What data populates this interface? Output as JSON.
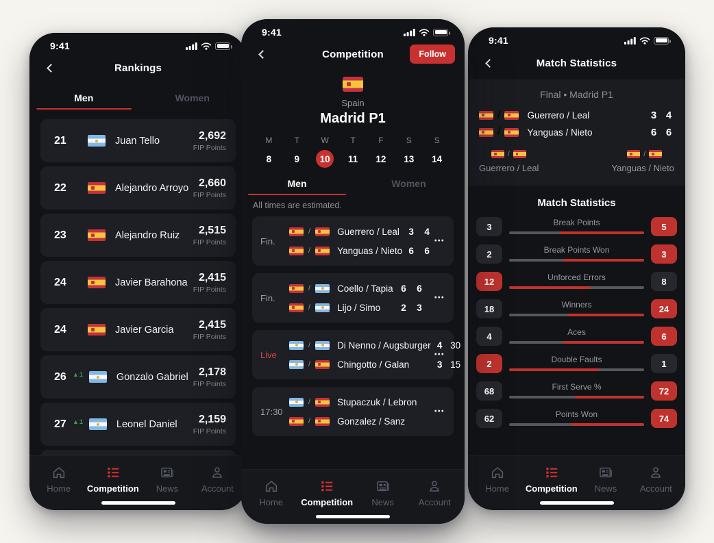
{
  "status": {
    "time": "9:41"
  },
  "colors": {
    "accent": "#c93131",
    "live_red": "#e04540",
    "chip_red": "#c0322d",
    "green_up": "#34a04c",
    "card_bg": "#1d1f24",
    "screen_bg": "#121316",
    "nav_bg": "#17181c",
    "bar_gray": "#55575c"
  },
  "icons": {
    "more": "•••",
    "up_arrow": "▲"
  },
  "nav": {
    "items": [
      {
        "label": "Home",
        "icon": "home",
        "active": false
      },
      {
        "label": "Competition",
        "icon": "competition",
        "active": true
      },
      {
        "label": "News",
        "icon": "news",
        "active": false
      },
      {
        "label": "Account",
        "icon": "account",
        "active": false
      }
    ]
  },
  "rankings": {
    "title": "Rankings",
    "tabs": [
      {
        "label": "Men",
        "active": true
      },
      {
        "label": "Women",
        "active": false
      }
    ],
    "points_label": "FIP Points",
    "players": [
      {
        "rank": "21",
        "delta": "",
        "flags": [
          "ar"
        ],
        "name": "Juan Tello",
        "points": "2,692"
      },
      {
        "rank": "22",
        "delta": "",
        "flags": [
          "es"
        ],
        "name": "Alejandro Arroyo",
        "points": "2,660"
      },
      {
        "rank": "23",
        "delta": "",
        "flags": [
          "es"
        ],
        "name": "Alejandro Ruiz",
        "points": "2,515"
      },
      {
        "rank": "24",
        "delta": "",
        "flags": [
          "es"
        ],
        "name": "Javier Barahona",
        "points": "2,415"
      },
      {
        "rank": "24",
        "delta": "",
        "flags": [
          "es"
        ],
        "name": "Javier Garcia",
        "points": "2,415"
      },
      {
        "rank": "26",
        "delta": "1",
        "flags": [
          "ar"
        ],
        "name": "Gonzalo Gabriel",
        "points": "2,178"
      },
      {
        "rank": "27",
        "delta": "1",
        "flags": [
          "ar"
        ],
        "name": "Leonel Daniel",
        "points": "2,159"
      }
    ]
  },
  "competition": {
    "title": "Competition",
    "follow_label": "Follow",
    "country": "Spain",
    "event": "Madrid P1",
    "week": [
      {
        "day": "M",
        "date": "8",
        "selected": false
      },
      {
        "day": "T",
        "date": "9",
        "selected": false
      },
      {
        "day": "W",
        "date": "10",
        "selected": true
      },
      {
        "day": "T",
        "date": "11",
        "selected": false
      },
      {
        "day": "F",
        "date": "12",
        "selected": false
      },
      {
        "day": "S",
        "date": "13",
        "selected": false
      },
      {
        "day": "S",
        "date": "14",
        "selected": false
      }
    ],
    "tabs": [
      {
        "label": "Men",
        "active": true
      },
      {
        "label": "Women",
        "active": false
      }
    ],
    "note": "All times are estimated.",
    "matches": [
      {
        "status": "Fin.",
        "live": false,
        "teams": [
          {
            "flags": [
              "es",
              "es"
            ],
            "name": "Guerrero / Leal",
            "s1": "3",
            "s2": "4"
          },
          {
            "flags": [
              "es",
              "es"
            ],
            "name": "Yanguas / Nieto",
            "s1": "6",
            "s2": "6"
          }
        ]
      },
      {
        "status": "Fin.",
        "live": false,
        "teams": [
          {
            "flags": [
              "es",
              "ar"
            ],
            "name": "Coello / Tapia",
            "s1": "6",
            "s2": "6"
          },
          {
            "flags": [
              "es",
              "ar"
            ],
            "name": "Lijo / Simo",
            "s1": "2",
            "s2": "3"
          }
        ]
      },
      {
        "status": "Live",
        "live": true,
        "teams": [
          {
            "flags": [
              "ar",
              "ar"
            ],
            "name": "Di Nenno / Augsburger",
            "s1": "4",
            "s2": "30"
          },
          {
            "flags": [
              "ar",
              "es"
            ],
            "name": "Chingotto / Galan",
            "s1": "3",
            "s2": "15"
          }
        ]
      },
      {
        "status": "17:30",
        "live": false,
        "teams": [
          {
            "flags": [
              "ar",
              "es"
            ],
            "name": "Stupaczuk / Lebron",
            "s1": "",
            "s2": ""
          },
          {
            "flags": [
              "es",
              "es"
            ],
            "name": "Gonzalez / Sanz",
            "s1": "",
            "s2": ""
          }
        ]
      }
    ]
  },
  "match_stats": {
    "title": "Match Statistics",
    "subtitle": "Final • Madrid P1",
    "scoreboard": [
      {
        "flags": [
          "es",
          "es"
        ],
        "name": "Guerrero / Leal",
        "s1": "3",
        "s2": "4"
      },
      {
        "flags": [
          "es",
          "es"
        ],
        "name": "Yanguas / Nieto",
        "s1": "6",
        "s2": "6"
      }
    ],
    "team_left": {
      "flags": [
        "es",
        "es"
      ],
      "name": "Guerrero / Leal"
    },
    "team_right": {
      "flags": [
        "es",
        "es"
      ],
      "name": "Yanguas / Nieto"
    },
    "section_title": "Match Statistics",
    "rows": [
      {
        "label": "Break Points",
        "left": "3",
        "right": "5",
        "left_pct": 37.5,
        "winner": "right"
      },
      {
        "label": "Break Points Won",
        "left": "2",
        "right": "3",
        "left_pct": 40.0,
        "winner": "right"
      },
      {
        "label": "Unforced Errors",
        "left": "12",
        "right": "8",
        "left_pct": 60.0,
        "winner": "left"
      },
      {
        "label": "Winners",
        "left": "18",
        "right": "24",
        "left_pct": 42.9,
        "winner": "right"
      },
      {
        "label": "Aces",
        "left": "4",
        "right": "6",
        "left_pct": 40.0,
        "winner": "right"
      },
      {
        "label": "Double Faults",
        "left": "2",
        "right": "1",
        "left_pct": 66.7,
        "winner": "left"
      },
      {
        "label": "First Serve %",
        "left": "68",
        "right": "72",
        "left_pct": 48.6,
        "winner": "right"
      },
      {
        "label": "Points Won",
        "left": "62",
        "right": "74",
        "left_pct": 45.6,
        "winner": "right"
      }
    ]
  }
}
